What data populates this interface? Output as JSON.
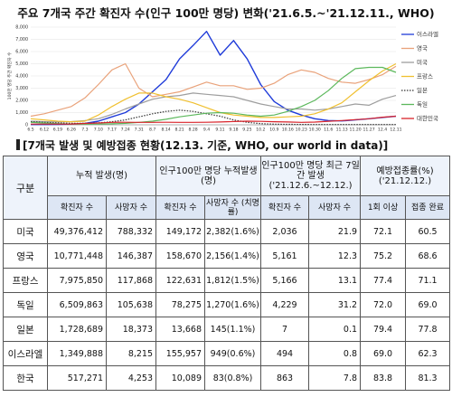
{
  "chart_data": {
    "type": "line",
    "title": "주요 7개국 주간 확진자 수(인구 100만 명당) 변화('21.6.5.~'21.12.11., WHO)",
    "ylabel": "100만 명당 주간 확진자 수",
    "ylim": [
      0,
      8000
    ],
    "yticks": [
      "0",
      "1,000",
      "2,000",
      "3,000",
      "4,000",
      "5,000",
      "6,000",
      "7,000",
      "8,000"
    ],
    "grid": true,
    "legend": "right",
    "categories": [
      "6.5",
      "6.12",
      "6.19",
      "6.26",
      "7.3",
      "7.10",
      "7.17",
      "7.24",
      "7.31",
      "8.7",
      "8.14",
      "8.21",
      "8.28",
      "9.4",
      "9.11",
      "9.18",
      "9.25",
      "10.2",
      "10.9",
      "10.16",
      "10.23",
      "10.30",
      "11.6",
      "11.13",
      "11.20",
      "11.27",
      "12.4",
      "12.11"
    ],
    "series": [
      {
        "name": "이스라엘",
        "color": "#1f3bd9",
        "dash": "",
        "values": [
          20,
          20,
          40,
          60,
          110,
          300,
          650,
          1000,
          1700,
          2700,
          3700,
          5400,
          6500,
          7650,
          5700,
          6900,
          5400,
          3300,
          1900,
          1200,
          800,
          500,
          350,
          320,
          400,
          500,
          600,
          700
        ]
      },
      {
        "name": "영국",
        "color": "#e9a27a",
        "dash": "",
        "values": [
          700,
          900,
          1200,
          1500,
          2200,
          3300,
          4500,
          5000,
          3000,
          2300,
          2500,
          2700,
          3100,
          3500,
          3200,
          3200,
          2900,
          3000,
          3400,
          4100,
          4500,
          4300,
          3800,
          3500,
          3400,
          3700,
          4100,
          4800
        ]
      },
      {
        "name": "미국",
        "color": "#9e9e9e",
        "dash": "",
        "values": [
          300,
          250,
          230,
          260,
          350,
          500,
          850,
          1300,
          1700,
          2100,
          2300,
          2400,
          2600,
          2500,
          2400,
          2300,
          2000,
          1700,
          1500,
          1300,
          1300,
          1200,
          1300,
          1500,
          1700,
          1600,
          2100,
          2400
        ]
      },
      {
        "name": "프랑스",
        "color": "#f0c030",
        "dash": "",
        "values": [
          500,
          400,
          300,
          250,
          300,
          800,
          1500,
          2100,
          2600,
          2600,
          2300,
          2100,
          1800,
          1400,
          1000,
          800,
          700,
          600,
          600,
          650,
          700,
          900,
          1300,
          1800,
          2700,
          3600,
          4400,
          5000
        ]
      },
      {
        "name": "일본",
        "color": "#333333",
        "dash": "1.5,1.5",
        "values": [
          250,
          200,
          150,
          120,
          120,
          160,
          250,
          400,
          650,
          900,
          1100,
          1200,
          1100,
          900,
          700,
          400,
          200,
          100,
          50,
          40,
          30,
          20,
          20,
          20,
          20,
          20,
          20,
          20
        ]
      },
      {
        "name": "독일",
        "color": "#5cb85c",
        "dash": "",
        "values": [
          200,
          150,
          100,
          60,
          50,
          60,
          80,
          120,
          200,
          300,
          450,
          650,
          800,
          950,
          1000,
          950,
          800,
          700,
          800,
          1100,
          1500,
          2000,
          2800,
          3800,
          4600,
          4700,
          4700,
          4300
        ]
      },
      {
        "name": "대한민국",
        "color": "#d9232a",
        "dash": "",
        "values": [
          60,
          60,
          60,
          70,
          110,
          150,
          200,
          210,
          200,
          200,
          210,
          200,
          200,
          210,
          230,
          270,
          300,
          280,
          250,
          230,
          200,
          220,
          290,
          350,
          420,
          500,
          620,
          700
        ]
      }
    ]
  },
  "table": {
    "title": "[7개국 발생 및 예방접종 현황(12.13. 기준, WHO, our world in data)]",
    "corner": "구분",
    "group_headers": [
      "누적 발생(명)",
      "인구100만 명당 누적발생(명)",
      "인구100만 명당 최근 7일간 발생 ('21.12.6.~12.12.)",
      "예방접종률(%) ('21.12.12.)"
    ],
    "sub_headers": [
      "확진자 수",
      "사망자 수",
      "확진자 수",
      "사망자 수 (치명률)",
      "확진자 수",
      "사망자 수",
      "1회 이상",
      "접종 완료"
    ],
    "rows": [
      {
        "name": "미국",
        "cells": [
          "49,376,412",
          "788,332",
          "149,172",
          "2,382(1.6%)",
          "2,036",
          "21.9",
          "72.1",
          "60.5"
        ]
      },
      {
        "name": "영국",
        "cells": [
          "10,771,448",
          "146,387",
          "158,670",
          "2,156(1.4%)",
          "5,161",
          "12.3",
          "75.2",
          "68.6"
        ]
      },
      {
        "name": "프랑스",
        "cells": [
          "7,975,850",
          "117,868",
          "122,631",
          "1,812(1.5%)",
          "5,166",
          "13.1",
          "77.4",
          "71.1"
        ]
      },
      {
        "name": "독일",
        "cells": [
          "6,509,863",
          "105,638",
          "78,275",
          "1,270(1.6%)",
          "4,229",
          "31.2",
          "72.0",
          "69.0"
        ]
      },
      {
        "name": "일본",
        "cells": [
          "1,728,689",
          "18,373",
          "13,668",
          "145(1.1%)",
          "7",
          "0.1",
          "79.4",
          "77.8"
        ]
      },
      {
        "name": "이스라엘",
        "cells": [
          "1,349,888",
          "8,215",
          "155,957",
          "949(0.6%)",
          "494",
          "0.8",
          "69.0",
          "62.3"
        ]
      },
      {
        "name": "한국",
        "cells": [
          "517,271",
          "4,253",
          "10,089",
          "83(0.8%)",
          "863",
          "7.8",
          "83.8",
          "81.3"
        ]
      }
    ]
  }
}
